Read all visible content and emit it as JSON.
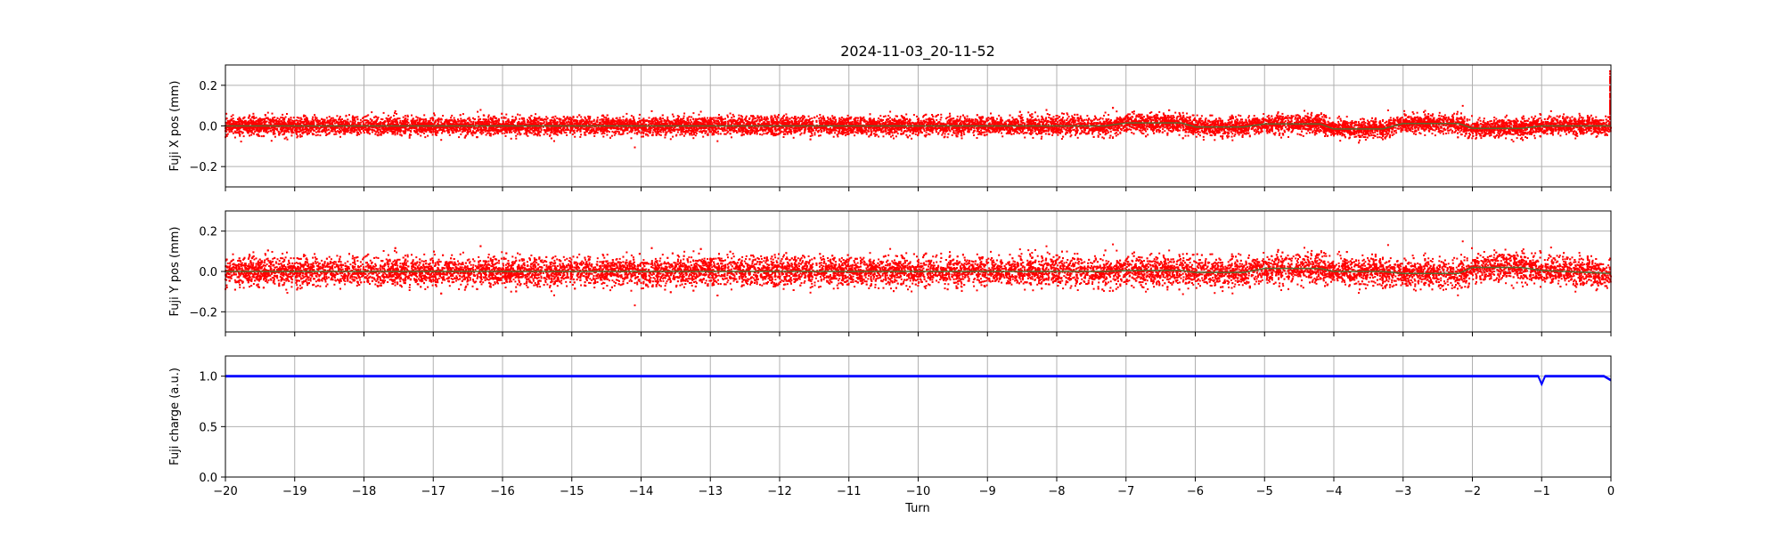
{
  "title": "2024-11-03_20-11-52",
  "colors": {
    "scatter": "#ff0000",
    "smooth": "#556b2f",
    "charge": "#0000ff",
    "grid": "#b0b0b0"
  },
  "xlabel": "Turn",
  "chart_data": [
    {
      "type": "scatter",
      "ylabel": "Fuji X pos (mm)",
      "xlim": [
        -20,
        0
      ],
      "ylim": [
        -0.3,
        0.3
      ],
      "xticks": [
        -20,
        -19,
        -18,
        -17,
        -16,
        -15,
        -14,
        -13,
        -12,
        -11,
        -10,
        -9,
        -8,
        -7,
        -6,
        -5,
        -4,
        -3,
        -2,
        -1,
        0
      ],
      "yticks": [
        -0.2,
        0.0,
        0.2
      ],
      "ytick_labels": [
        "−0.2",
        "0.0",
        "0.2"
      ],
      "grid": true,
      "series": [
        {
          "style": "scatter",
          "spread": 0.022,
          "center": [
            [
              -20,
              0.0
            ],
            [
              -7.3,
              0.0
            ],
            [
              -7.0,
              0.015
            ],
            [
              -6.2,
              0.015
            ],
            [
              -6.0,
              -0.005
            ],
            [
              -5.3,
              -0.005
            ],
            [
              -5.0,
              0.01
            ],
            [
              -4.2,
              0.01
            ],
            [
              -4.0,
              -0.015
            ],
            [
              -3.3,
              -0.015
            ],
            [
              -3.0,
              0.012
            ],
            [
              -2.2,
              0.012
            ],
            [
              -2.0,
              -0.012
            ],
            [
              -1.3,
              -0.012
            ],
            [
              -1.0,
              0.0
            ],
            [
              0,
              0.0
            ]
          ],
          "end_spike": [
            0.0,
            0.28
          ]
        },
        {
          "style": "line",
          "values": [
            [
              -20,
              0.0
            ],
            [
              -7.3,
              0.0
            ],
            [
              -7.0,
              0.015
            ],
            [
              -6.2,
              0.015
            ],
            [
              -6.0,
              -0.005
            ],
            [
              -5.3,
              -0.005
            ],
            [
              -5.0,
              0.01
            ],
            [
              -4.2,
              0.01
            ],
            [
              -4.0,
              -0.015
            ],
            [
              -3.3,
              -0.015
            ],
            [
              -3.0,
              0.012
            ],
            [
              -2.2,
              0.012
            ],
            [
              -2.0,
              -0.012
            ],
            [
              -1.3,
              -0.012
            ],
            [
              -1.0,
              0.0
            ],
            [
              0,
              0.0
            ]
          ]
        }
      ]
    },
    {
      "type": "scatter",
      "ylabel": "Fuji Y pos (mm)",
      "xlim": [
        -20,
        0
      ],
      "ylim": [
        -0.3,
        0.3
      ],
      "xticks": [
        -20,
        -19,
        -18,
        -17,
        -16,
        -15,
        -14,
        -13,
        -12,
        -11,
        -10,
        -9,
        -8,
        -7,
        -6,
        -5,
        -4,
        -3,
        -2,
        -1,
        0
      ],
      "yticks": [
        -0.2,
        0.0,
        0.2
      ],
      "ytick_labels": [
        "−0.2",
        "0.0",
        "0.2"
      ],
      "grid": true,
      "series": [
        {
          "style": "scatter",
          "spread": 0.035,
          "center": [
            [
              -20,
              0.0
            ],
            [
              -7.3,
              0.0
            ],
            [
              -7.0,
              0.005
            ],
            [
              -6.2,
              0.005
            ],
            [
              -6.0,
              -0.005
            ],
            [
              -5.3,
              -0.005
            ],
            [
              -5.0,
              0.015
            ],
            [
              -4.2,
              0.015
            ],
            [
              -4.0,
              0.0
            ],
            [
              -3.3,
              0.0
            ],
            [
              -3.0,
              -0.01
            ],
            [
              -2.2,
              -0.01
            ],
            [
              -2.0,
              0.02
            ],
            [
              -1.3,
              0.02
            ],
            [
              -1.0,
              0.005
            ],
            [
              0,
              -0.01
            ]
          ]
        },
        {
          "style": "line",
          "values": [
            [
              -20,
              0.0
            ],
            [
              -7.3,
              0.0
            ],
            [
              -7.0,
              0.005
            ],
            [
              -6.2,
              0.005
            ],
            [
              -6.0,
              -0.005
            ],
            [
              -5.3,
              -0.005
            ],
            [
              -5.0,
              0.015
            ],
            [
              -4.2,
              0.015
            ],
            [
              -4.0,
              0.0
            ],
            [
              -3.3,
              0.0
            ],
            [
              -3.0,
              -0.01
            ],
            [
              -2.2,
              -0.01
            ],
            [
              -2.0,
              0.02
            ],
            [
              -1.3,
              0.02
            ],
            [
              -1.0,
              0.005
            ],
            [
              0,
              -0.01
            ]
          ]
        }
      ]
    },
    {
      "type": "line",
      "ylabel": "Fuji charge (a.u.)",
      "xlim": [
        -20,
        0
      ],
      "ylim": [
        0.0,
        1.2
      ],
      "xticks": [
        -20,
        -19,
        -18,
        -17,
        -16,
        -15,
        -14,
        -13,
        -12,
        -11,
        -10,
        -9,
        -8,
        -7,
        -6,
        -5,
        -4,
        -3,
        -2,
        -1,
        0
      ],
      "xtick_labels": [
        "−20",
        "−19",
        "−18",
        "−17",
        "−16",
        "−15",
        "−14",
        "−13",
        "−12",
        "−11",
        "−10",
        "−9",
        "−8",
        "−7",
        "−6",
        "−5",
        "−4",
        "−3",
        "−2",
        "−1",
        "0"
      ],
      "yticks": [
        0.0,
        0.5,
        1.0
      ],
      "ytick_labels": [
        "0.0",
        "0.5",
        "1.0"
      ],
      "grid": true,
      "series": [
        {
          "style": "band",
          "values": [
            [
              -20,
              1.0
            ],
            [
              -1.05,
              1.0
            ],
            [
              -1.0,
              0.92
            ],
            [
              -0.95,
              1.0
            ],
            [
              -0.1,
              1.0
            ],
            [
              0,
              0.96
            ]
          ],
          "spread": 0.008
        }
      ]
    }
  ]
}
